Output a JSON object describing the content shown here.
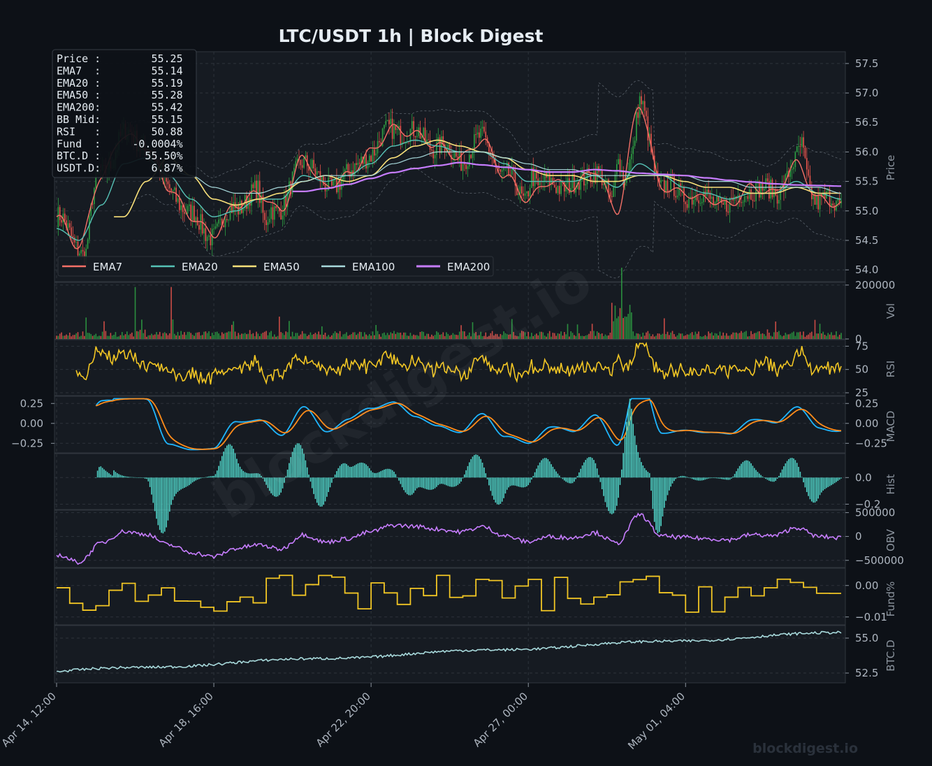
{
  "title": "LTC/USDT  1h  |  Block Digest",
  "watermark": "blockdigest.io",
  "brand": "blockdigest.io",
  "colors": {
    "background": "#0d1117",
    "panel": "#161b22",
    "up": "#2ea043",
    "down": "#e5534b",
    "ema7": "#f47067",
    "ema20": "#56c2b6",
    "ema50": "#f9e07a",
    "ema100": "#a8dadc",
    "ema200": "#c77dff",
    "rsi": "#f2c624",
    "macd": "#1fb6ff",
    "signal": "#ff8c1a",
    "hist": "#4fd1c5",
    "obv": "#c77dff",
    "funding": "#f2c624",
    "btcd": "#a8dadc",
    "bollinger": "#8b949e"
  },
  "info_box": [
    "Price :        55.25",
    "EMA7  :        55.14",
    "EMA20 :        55.19",
    "EMA50 :        55.28",
    "EMA200:        55.42",
    "BB Mid:        55.15",
    "RSI   :        50.88",
    "Fund  :     -0.0004%",
    "BTC.D :       55.50%",
    "USDT.D:        6.87%"
  ],
  "legend": [
    "EMA7",
    "EMA20",
    "EMA50",
    "EMA100",
    "EMA200"
  ],
  "x_ticks": [
    "Apr 14, 12:00",
    "Apr 18, 16:00",
    "Apr 22, 20:00",
    "Apr 27, 00:00",
    "May 01, 04:00"
  ],
  "panels": [
    {
      "key": "price",
      "ylabel": "Price",
      "ticks": [
        "57.5",
        "57.0",
        "56.5",
        "56.0",
        "55.5",
        "55.0",
        "54.5",
        "54.0"
      ]
    },
    {
      "key": "vol",
      "ylabel": "Vol",
      "ticks": [
        "200000",
        "0"
      ]
    },
    {
      "key": "rsi",
      "ylabel": "RSI",
      "ticks": [
        "75",
        "50",
        "25"
      ]
    },
    {
      "key": "macd",
      "ylabel": "MACD",
      "ticks": [
        "0.25",
        "0.00",
        "−0.25"
      ],
      "left_ticks": [
        "0.25",
        "0.00",
        "−0.25"
      ]
    },
    {
      "key": "hist",
      "ylabel": "Hist",
      "ticks": [
        "0.0",
        "−0.2"
      ]
    },
    {
      "key": "obv",
      "ylabel": "OBV",
      "ticks": [
        "500000",
        "0",
        "−500000"
      ]
    },
    {
      "key": "fund",
      "ylabel": "Fund%",
      "ticks": [
        "0.00",
        "−0.01"
      ]
    },
    {
      "key": "btcd",
      "ylabel": "BTC.D",
      "ticks": [
        "55.0",
        "52.5"
      ]
    }
  ],
  "chart_data": {
    "type": "line",
    "title": "LTC/USDT  1h  |  Block Digest",
    "x_range": [
      "Apr 14, 12:00",
      "May 04, 12:00"
    ],
    "candles": 480,
    "series": [
      {
        "name": "EMA7",
        "values": [
          54.9,
          54.4,
          55.6,
          56.3,
          56.1,
          55.4,
          54.9,
          54.6,
          55.1,
          55.3,
          55.0,
          55.9,
          55.4,
          55.6,
          56.0,
          56.4,
          56.3,
          56.1,
          55.9,
          56.2,
          55.6,
          55.2,
          55.5,
          55.4,
          55.7,
          55.0,
          56.8,
          55.4,
          55.3,
          55.2,
          55.1,
          55.4,
          55.3,
          55.8,
          55.2,
          55.1
        ]
      },
      {
        "name": "EMA20",
        "values": [
          54.7,
          54.5,
          55.1,
          55.8,
          55.9,
          55.6,
          55.2,
          54.9,
          55.0,
          55.2,
          55.2,
          55.6,
          55.5,
          55.6,
          55.8,
          56.1,
          56.2,
          56.1,
          56.0,
          56.0,
          55.8,
          55.5,
          55.5,
          55.5,
          55.6,
          55.4,
          55.8,
          55.6,
          55.4,
          55.3,
          55.2,
          55.3,
          55.3,
          55.5,
          55.3,
          55.2
        ]
      },
      {
        "name": "EMA50",
        "values": [
          null,
          null,
          null,
          54.9,
          55.5,
          55.9,
          55.6,
          55.2,
          55.1,
          55.2,
          55.3,
          55.5,
          55.6,
          55.5,
          55.6,
          55.9,
          56.1,
          56.2,
          56.1,
          56.0,
          55.9,
          55.7,
          55.6,
          55.6,
          55.5,
          55.5,
          55.6,
          55.6,
          55.5,
          55.4,
          55.4,
          55.3,
          55.3,
          55.4,
          55.3,
          55.3
        ]
      },
      {
        "name": "EMA100",
        "values": [
          null,
          null,
          null,
          null,
          null,
          55.7,
          55.6,
          55.4,
          55.3,
          55.3,
          55.4,
          55.5,
          55.6,
          55.6,
          55.6,
          55.8,
          55.9,
          56.0,
          56.0,
          56.0,
          55.9,
          55.8,
          55.7,
          55.7,
          55.6,
          55.6,
          55.6,
          55.6,
          55.6,
          55.5,
          55.5,
          55.4,
          55.4,
          55.4,
          55.4,
          55.3
        ]
      },
      {
        "name": "EMA200",
        "values": [
          null,
          null,
          null,
          null,
          null,
          null,
          null,
          null,
          null,
          null,
          null,
          55.33,
          55.38,
          55.45,
          55.55,
          55.65,
          55.72,
          55.77,
          55.82,
          55.78,
          55.74,
          55.7,
          55.66,
          55.66,
          55.7,
          55.68,
          55.64,
          55.62,
          55.6,
          55.56,
          55.52,
          55.49,
          55.46,
          55.44,
          55.43,
          55.42
        ]
      }
    ],
    "price_ylim": [
      53.8,
      57.7
    ],
    "volume_ylim": [
      0,
      210000
    ],
    "rsi_ylim": [
      22,
      82
    ],
    "macd_ylim": [
      -0.37,
      0.34
    ],
    "hist_ylim": [
      -0.24,
      0.18
    ],
    "obv_ylim": [
      -650000,
      550000
    ],
    "fund_ylim": [
      -0.0125,
      0.0055
    ],
    "btcd_ylim": [
      51.8,
      55.9
    ],
    "grid": true,
    "legend_position": "bottom-left of price panel"
  }
}
